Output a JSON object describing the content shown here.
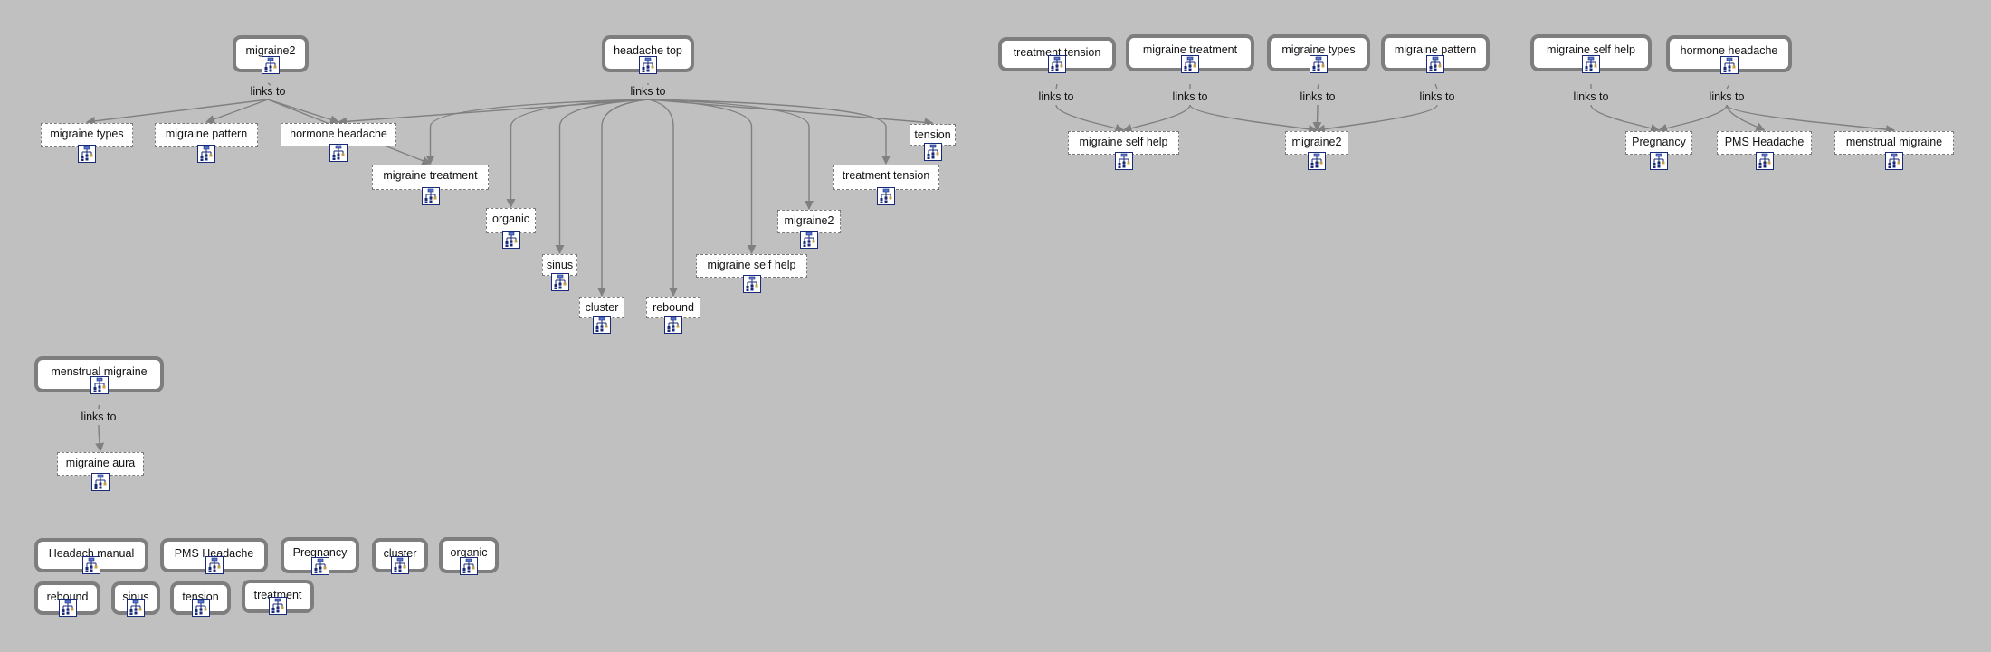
{
  "icon": "hierarchy-tree-icon",
  "edge_label": "links to",
  "colors": {
    "background": "#c0c0c0",
    "edge": "#808080",
    "node_border": "#7e7e7e",
    "icon_blue": "#1a2a7a"
  },
  "groups": [
    {
      "root": "migraine2",
      "label": "links to",
      "children": [
        "migraine types",
        "migraine pattern",
        "hormone headache",
        "migraine treatment"
      ]
    },
    {
      "root": "headache top",
      "label": "links to",
      "children": [
        "hormone headache",
        "migraine treatment",
        "organic",
        "sinus",
        "cluster",
        "rebound",
        "migraine self help",
        "migraine2",
        "treatment tension",
        "tension"
      ]
    },
    {
      "root": "treatment tension",
      "label": "links to",
      "children": [
        "migraine self help"
      ]
    },
    {
      "root": "migraine treatment",
      "label": "links to",
      "children": [
        "migraine self help",
        "migraine2"
      ]
    },
    {
      "root": "migraine types",
      "label": "links to",
      "children": [
        "migraine2"
      ]
    },
    {
      "root": "migraine pattern",
      "label": "links to",
      "children": [
        "migraine2"
      ]
    },
    {
      "root": "migraine self help",
      "label": "links to",
      "children": [
        "Pregnancy"
      ]
    },
    {
      "root": "hormone headache",
      "label": "links to",
      "children": [
        "Pregnancy",
        "PMS Headache",
        "menstrual migraine"
      ]
    },
    {
      "root": "menstrual migraine",
      "label": "links to",
      "children": [
        "migraine aura"
      ]
    }
  ],
  "child_nodes": [
    "migraine types",
    "migraine pattern",
    "hormone headache",
    "migraine treatment",
    "organic",
    "sinus",
    "cluster",
    "rebound",
    "migraine self help",
    "migraine2",
    "treatment tension",
    "tension",
    "migraine self help",
    "migraine2",
    "Pregnancy",
    "PMS Headache",
    "menstrual migraine",
    "migraine aura"
  ],
  "standalone_nodes": [
    "Headach manual",
    "PMS Headache",
    "Pregnancy",
    "cluster",
    "organic",
    "rebound",
    "sinus",
    "tension",
    "treatment"
  ]
}
